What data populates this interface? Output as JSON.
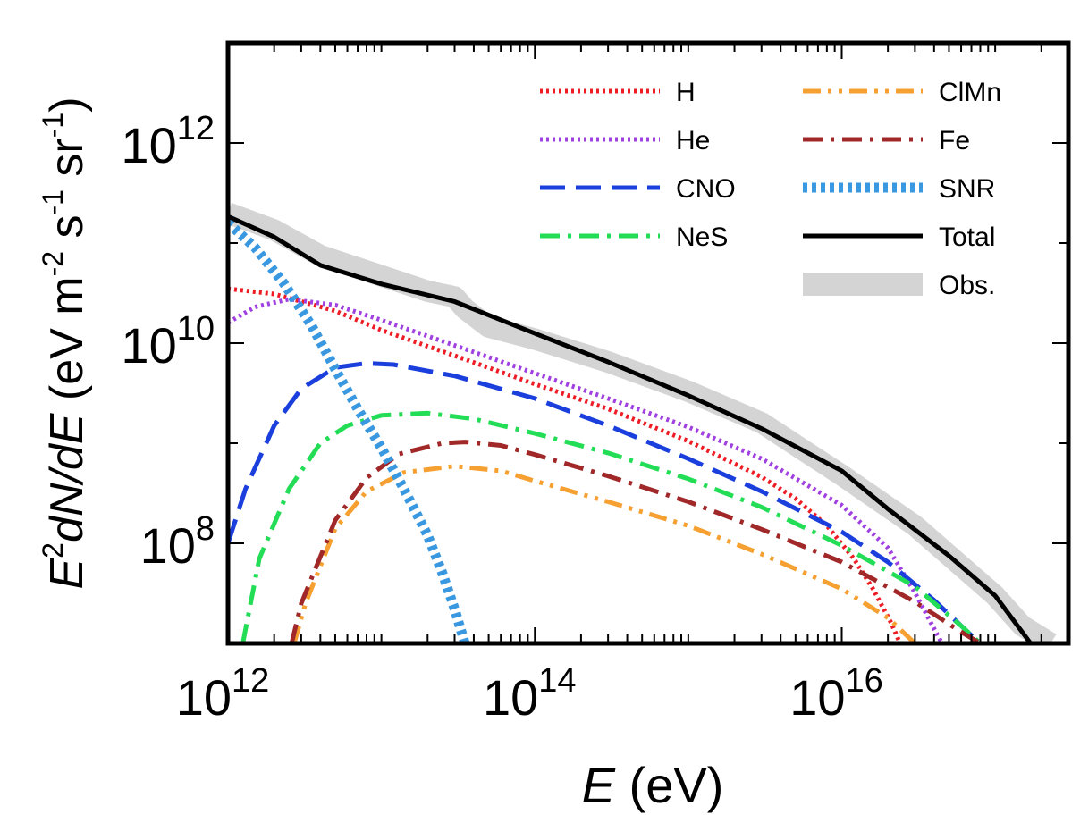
{
  "chart_data": {
    "type": "line",
    "xlabel": {
      "var": "E",
      "unit": " (eV)"
    },
    "ylabel": {
      "var": "E",
      "var_exp": "2",
      "rest": "dN/dE",
      "unit": " (eV m",
      "exp1": "-2",
      "s": " s",
      "exp2": "-1",
      "sr": " sr",
      "exp3": "-1",
      "close": ")"
    },
    "xscale": "log",
    "yscale": "log",
    "xlim": [
      1000000000000.0,
      3e+17
    ],
    "ylim": [
      10000000.0,
      10000000000000.0
    ],
    "x_ticks": [
      {
        "base": "10",
        "exp": "12",
        "value": 1000000000000.0
      },
      {
        "base": "10",
        "exp": "14",
        "value": 100000000000000.0
      },
      {
        "base": "10",
        "exp": "16",
        "value": 1e+16
      }
    ],
    "y_ticks": [
      {
        "base": "10",
        "exp": "8",
        "value": 100000000.0
      },
      {
        "base": "10",
        "exp": "10",
        "value": 10000000000.0
      },
      {
        "base": "10",
        "exp": "12",
        "value": 1000000000000.0
      }
    ],
    "legend_placement": "top-right",
    "series": [
      {
        "name": "H",
        "color": "#ee1c25",
        "style": "dotted",
        "points": [
          [
            1000000000000.0,
            35000000000.0
          ],
          [
            2000000000000.0,
            31000000000.0
          ],
          [
            5000000000000.0,
            21000000000.0
          ],
          [
            10000000000000.0,
            13500000000.0
          ],
          [
            30000000000000.0,
            7500000000.0
          ],
          [
            100000000000000.0,
            3900000000.0
          ],
          [
            300000000000000.0,
            2200000000.0
          ],
          [
            1000000000000000.0,
            1050000000.0
          ],
          [
            3000000000000000.0,
            460000000.0
          ],
          [
            5000000000000000.0,
            280000000.0
          ],
          [
            8000000000000000.0,
            150000000.0
          ],
          [
            1.2e+16,
            70000000.0
          ],
          [
            1.6e+16,
            35000000.0
          ],
          [
            2.1e+16,
            16000000.0
          ],
          [
            2.4e+16,
            10000000.0
          ]
        ]
      },
      {
        "name": "He",
        "color": "#a040e0",
        "style": "dotted",
        "points": [
          [
            1000000000000.0,
            16000000000.0
          ],
          [
            1500000000000.0,
            23000000000.0
          ],
          [
            2500000000000.0,
            27500000000.0
          ],
          [
            5000000000000.0,
            24000000000.0
          ],
          [
            10000000000000.0,
            17000000000.0
          ],
          [
            30000000000000.0,
            9500000000.0
          ],
          [
            100000000000000.0,
            5000000000.0
          ],
          [
            300000000000000.0,
            2800000000.0
          ],
          [
            1000000000000000.0,
            1450000000.0
          ],
          [
            3000000000000000.0,
            700000000.0
          ],
          [
            1e+16,
            240000000.0
          ],
          [
            2e+16,
            90000000.0
          ],
          [
            3e+16,
            32000000.0
          ],
          [
            4e+16,
            14000000.0
          ],
          [
            4.5e+16,
            10000000.0
          ]
        ]
      },
      {
        "name": "CNO",
        "color": "#1a3fdd",
        "style": "dashed",
        "points": [
          [
            1000000000000.0,
            100000000.0
          ],
          [
            1300000000000.0,
            350000000.0
          ],
          [
            2000000000000.0,
            1500000000.0
          ],
          [
            3000000000000.0,
            3500000000.0
          ],
          [
            5000000000000.0,
            5700000000.0
          ],
          [
            8000000000000.0,
            6300000000.0
          ],
          [
            12000000000000.0,
            6100000000.0
          ],
          [
            30000000000000.0,
            4700000000.0
          ],
          [
            100000000000000.0,
            2800000000.0
          ],
          [
            300000000000000.0,
            1500000000.0
          ],
          [
            1000000000000000.0,
            700000000.0
          ],
          [
            3000000000000000.0,
            330000000.0
          ],
          [
            1e+16,
            130000000.0
          ],
          [
            2e+16,
            65000000.0
          ],
          [
            4e+16,
            27000000.0
          ],
          [
            7e+16,
            12000000.0
          ],
          [
            8e+16,
            10000000.0
          ]
        ]
      },
      {
        "name": "NeS",
        "color": "#22dd55",
        "style": "dashdot",
        "points": [
          [
            1250000000000.0,
            10000000.0
          ],
          [
            1600000000000.0,
            70000000.0
          ],
          [
            2500000000000.0,
            350000000.0
          ],
          [
            4000000000000.0,
            1000000000.0
          ],
          [
            6000000000000.0,
            1500000000.0
          ],
          [
            10000000000000.0,
            1900000000.0
          ],
          [
            20000000000000.0,
            2000000000.0
          ],
          [
            40000000000000.0,
            1750000000.0
          ],
          [
            100000000000000.0,
            1250000000.0
          ],
          [
            300000000000000.0,
            800000000.0
          ],
          [
            1000000000000000.0,
            440000000.0
          ],
          [
            3000000000000000.0,
            230000000.0
          ],
          [
            1e+16,
            95000000.0
          ],
          [
            3e+16,
            37000000.0
          ],
          [
            6e+16,
            15000000.0
          ],
          [
            8e+16,
            10000000.0
          ]
        ]
      },
      {
        "name": "ClMn",
        "color": "#f5a030",
        "style": "dashdotdot",
        "points": [
          [
            2700000000000.0,
            10000000.0
          ],
          [
            3200000000000.0,
            25000000.0
          ],
          [
            5000000000000.0,
            140000000.0
          ],
          [
            8000000000000.0,
            330000000.0
          ],
          [
            14000000000000.0,
            510000000.0
          ],
          [
            30000000000000.0,
            590000000.0
          ],
          [
            60000000000000.0,
            530000000.0
          ],
          [
            100000000000000.0,
            420000000.0
          ],
          [
            300000000000000.0,
            260000000.0
          ],
          [
            1000000000000000.0,
            150000000.0
          ],
          [
            3000000000000000.0,
            78000000.0
          ],
          [
            1e+16,
            35000000.0
          ],
          [
            2e+16,
            18000000.0
          ],
          [
            3e+16,
            10000000.0
          ]
        ]
      },
      {
        "name": "Fe",
        "color": "#a02828",
        "style": "dashdot",
        "points": [
          [
            2600000000000.0,
            10000000.0
          ],
          [
            3000000000000.0,
            25000000.0
          ],
          [
            5000000000000.0,
            170000000.0
          ],
          [
            8000000000000.0,
            450000000.0
          ],
          [
            13000000000000.0,
            780000000.0
          ],
          [
            25000000000000.0,
            1000000000.0
          ],
          [
            35000000000000.0,
            1030000000.0
          ],
          [
            60000000000000.0,
            950000000.0
          ],
          [
            100000000000000.0,
            770000000.0
          ],
          [
            300000000000000.0,
            470000000.0
          ],
          [
            1000000000000000.0,
            260000000.0
          ],
          [
            3000000000000000.0,
            138000000.0
          ],
          [
            1e+16,
            65000000.0
          ],
          [
            3e+16,
            26000000.0
          ],
          [
            6e+16,
            13000000.0
          ],
          [
            8e+16,
            10000000.0
          ]
        ]
      },
      {
        "name": "SNR",
        "color": "#3a98e0",
        "style": "thickdot",
        "points": [
          [
            1000000000000.0,
            160000000000.0
          ],
          [
            1500000000000.0,
            90000000000.0
          ],
          [
            2300000000000.0,
            40000000000.0
          ],
          [
            3500000000000.0,
            15000000000.0
          ],
          [
            5000000000000.0,
            5500000000.0
          ],
          [
            7000000000000.0,
            2200000000.0
          ],
          [
            10000000000000.0,
            900000000.0
          ],
          [
            14000000000000.0,
            350000000.0
          ],
          [
            20000000000000.0,
            120000000.0
          ],
          [
            25000000000000.0,
            50000000.0
          ],
          [
            30000000000000.0,
            22000000.0
          ],
          [
            35000000000000.0,
            10000000.0
          ]
        ]
      },
      {
        "name": "Total",
        "color": "#000000",
        "style": "solid",
        "points": [
          [
            1000000000000.0,
            185000000000.0
          ],
          [
            2000000000000.0,
            115000000000.0
          ],
          [
            4000000000000.0,
            60000000000.0
          ],
          [
            10000000000000.0,
            39000000000.0
          ],
          [
            30000000000000.0,
            26000000000.0
          ],
          [
            100000000000000.0,
            12500000000.0
          ],
          [
            300000000000000.0,
            6500000000.0
          ],
          [
            1000000000000000.0,
            3000000000.0
          ],
          [
            3000000000000000.0,
            1400000000.0
          ],
          [
            1e+16,
            530000000.0
          ],
          [
            2e+16,
            220000000.0
          ],
          [
            5e+16,
            75000000.0
          ],
          [
            1e+17,
            30000000.0
          ],
          [
            1.5e+17,
            13000000.0
          ],
          [
            1.7e+17,
            10000000.0
          ]
        ]
      },
      {
        "name": "Obs.",
        "color": "#d4d4d4",
        "style": "band",
        "points": [
          [
            1000000000000.0,
            200000000000.0
          ],
          [
            2000000000000.0,
            135000000000.0
          ],
          [
            4000000000000.0,
            75000000000.0
          ],
          [
            10000000000000.0,
            47000000000.0
          ],
          [
            20000000000000.0,
            33000000000.0
          ],
          [
            30000000000000.0,
            29000000000.0
          ],
          [
            35000000000000.0,
            22000000000.0
          ],
          [
            50000000000000.0,
            14500000000.0
          ],
          [
            100000000000000.0,
            11000000000.0
          ],
          [
            300000000000000.0,
            6500000000.0
          ],
          [
            1000000000000000.0,
            3300000000.0
          ],
          [
            3000000000000000.0,
            1600000000.0
          ],
          [
            6000000000000000.0,
            800000000.0
          ],
          [
            1e+16,
            480000000.0
          ],
          [
            3e+16,
            150000000.0
          ],
          [
            1e+17,
            30000000.0
          ],
          [
            1.5e+17,
            15000000.0
          ],
          [
            2.3e+17,
            10000000.0
          ]
        ]
      }
    ]
  }
}
